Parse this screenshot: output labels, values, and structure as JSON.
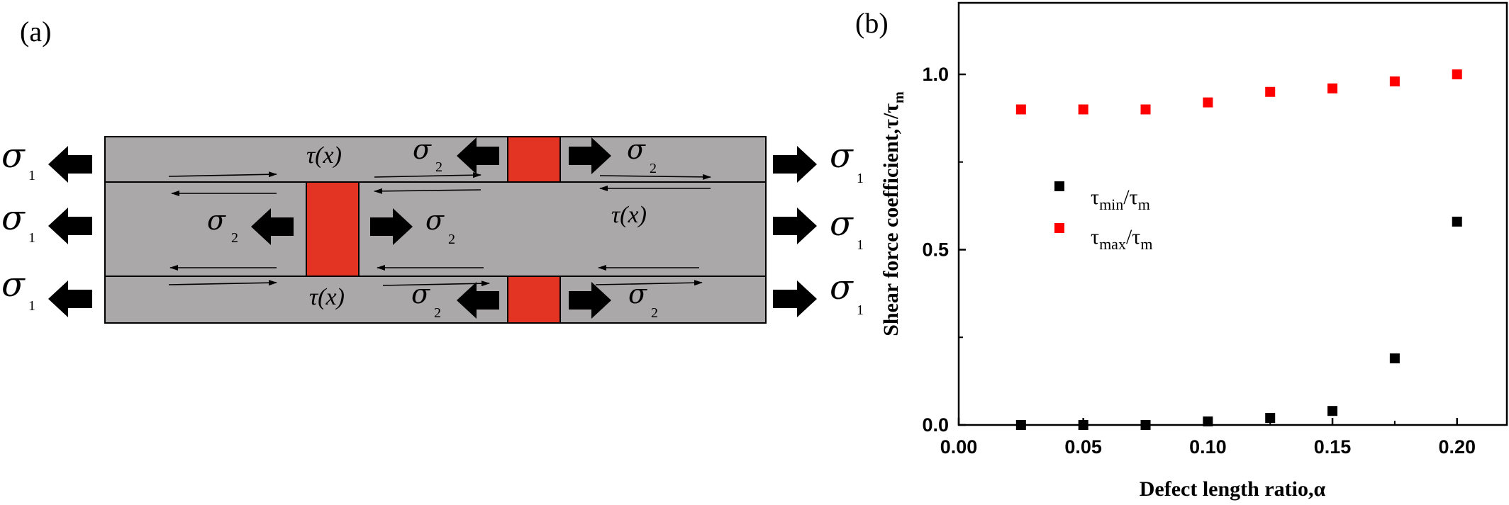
{
  "panel_a": {
    "label": "(a)",
    "sigma": "σ",
    "sigma1_sub": "1",
    "sigma2_sub": "2",
    "tau_x": "τ(x)"
  },
  "panel_b": {
    "label": "(b)"
  },
  "colors": {
    "plate": "#aba8a9",
    "defect": "#e23323",
    "max_series": "#ff0000",
    "min_series": "#000000"
  },
  "chart_data": {
    "type": "scatter",
    "xlabel": "Defect length ratio,α",
    "ylabel": "Shear force coefficient,τ/τm",
    "ylabel_main": "Shear force coefficient,τ/τ",
    "ylabel_sub": "m",
    "xlim": [
      0.0,
      0.22
    ],
    "ylim": [
      0.0,
      1.0
    ],
    "xticks": [
      "0.00",
      "0.05",
      "0.10",
      "0.15",
      "0.20"
    ],
    "yticks": [
      "0.0",
      "0.5",
      "1.0"
    ],
    "x": [
      0.025,
      0.05,
      0.075,
      0.1,
      0.125,
      0.15,
      0.175,
      0.2
    ],
    "series": [
      {
        "name": "τmin/τm",
        "legend_main": "τ",
        "legend_sub1": "min",
        "legend_mid": "/τ",
        "legend_sub2": "m",
        "color": "#000000",
        "values": [
          0.0,
          0.0,
          0.0,
          0.01,
          0.02,
          0.04,
          0.19,
          0.58
        ]
      },
      {
        "name": "τmax/τm",
        "legend_main": "τ",
        "legend_sub1": "max",
        "legend_mid": "/τ",
        "legend_sub2": "m",
        "color": "#ff0000",
        "values": [
          0.9,
          0.9,
          0.9,
          0.92,
          0.95,
          0.96,
          0.98,
          1.0
        ]
      }
    ],
    "grid": false,
    "legend_position": "center-left"
  }
}
